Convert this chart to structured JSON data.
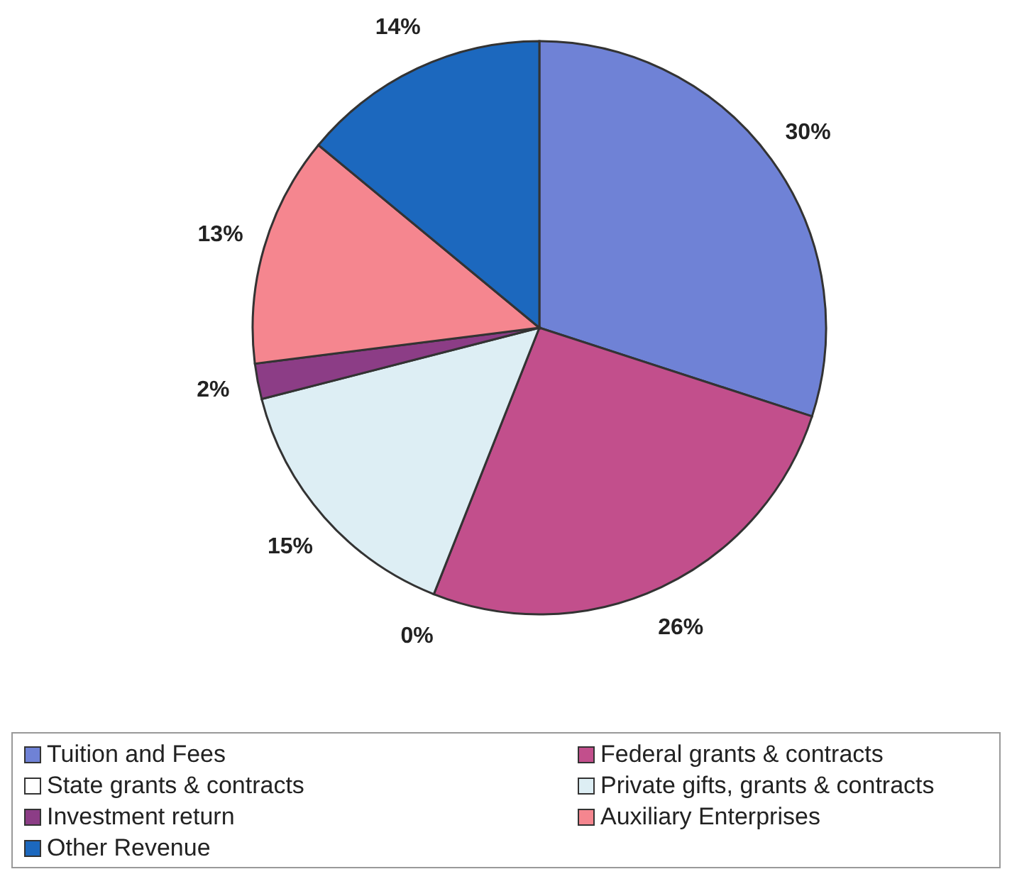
{
  "chart_data": {
    "type": "pie",
    "categories": [
      "Tuition and Fees",
      "Federal grants & contracts",
      "State grants & contracts",
      "Private gifts, grants & contracts",
      "Investment return",
      "Auxiliary Enterprises",
      "Other Revenue"
    ],
    "values": [
      30,
      26,
      0,
      15,
      2,
      13,
      14
    ],
    "colors": [
      "#6f82d6",
      "#c24f8c",
      "#ffffff",
      "#ddeef4",
      "#8c3d86",
      "#f5868f",
      "#1c68be"
    ],
    "value_labels": [
      "30%",
      "26%",
      "0%",
      "15%",
      "2%",
      "13%",
      "14%"
    ],
    "legend": "bottom"
  }
}
